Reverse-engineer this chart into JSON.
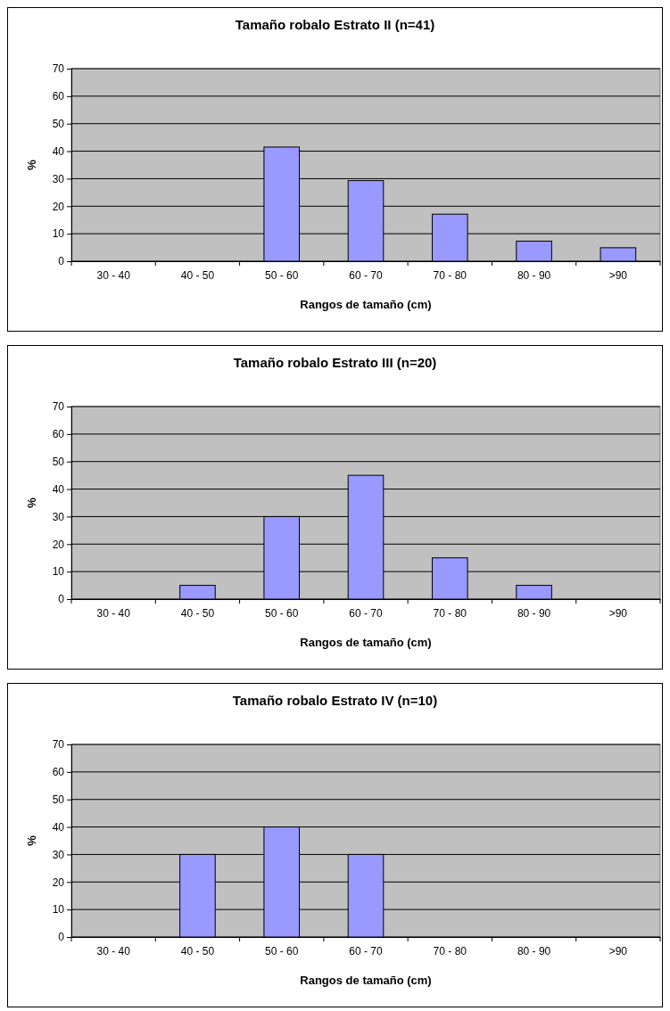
{
  "chart_data": [
    {
      "type": "bar",
      "title": "Tamaño robalo Estrato II (n=41)",
      "xlabel": "Rangos de tamaño (cm)",
      "ylabel": "%",
      "categories": [
        "30 - 40",
        "40 - 50",
        "50 - 60",
        "60 - 70",
        "70 - 80",
        "80 - 90",
        ">90"
      ],
      "values": [
        0,
        0,
        41.5,
        29.3,
        17.1,
        7.3,
        4.9
      ],
      "color": "#9999ff",
      "ylim": [
        0,
        70
      ],
      "yticks": [
        0,
        10,
        20,
        30,
        40,
        50,
        60,
        70
      ],
      "grid": "y"
    },
    {
      "type": "bar",
      "title": "Tamaño robalo Estrato III (n=20)",
      "xlabel": "Rangos de tamaño (cm)",
      "ylabel": "%",
      "categories": [
        "30 - 40",
        "40 - 50",
        "50 - 60",
        "60 - 70",
        "70 - 80",
        "80 - 90",
        ">90"
      ],
      "values": [
        0,
        5,
        30,
        45,
        15,
        5,
        0
      ],
      "color": "#9999ff",
      "ylim": [
        0,
        70
      ],
      "yticks": [
        0,
        10,
        20,
        30,
        40,
        50,
        60,
        70
      ],
      "grid": "y"
    },
    {
      "type": "bar",
      "title": "Tamaño robalo Estrato IV (n=10)",
      "xlabel": "Rangos de tamaño (cm)",
      "ylabel": "%",
      "categories": [
        "30 - 40",
        "40 - 50",
        "50 - 60",
        "60 - 70",
        "70 - 80",
        "80 - 90",
        ">90"
      ],
      "values": [
        0,
        30,
        40,
        30,
        0,
        0,
        0
      ],
      "color": "#9999ff",
      "ylim": [
        0,
        70
      ],
      "yticks": [
        0,
        10,
        20,
        30,
        40,
        50,
        60,
        70
      ],
      "grid": "y"
    }
  ]
}
